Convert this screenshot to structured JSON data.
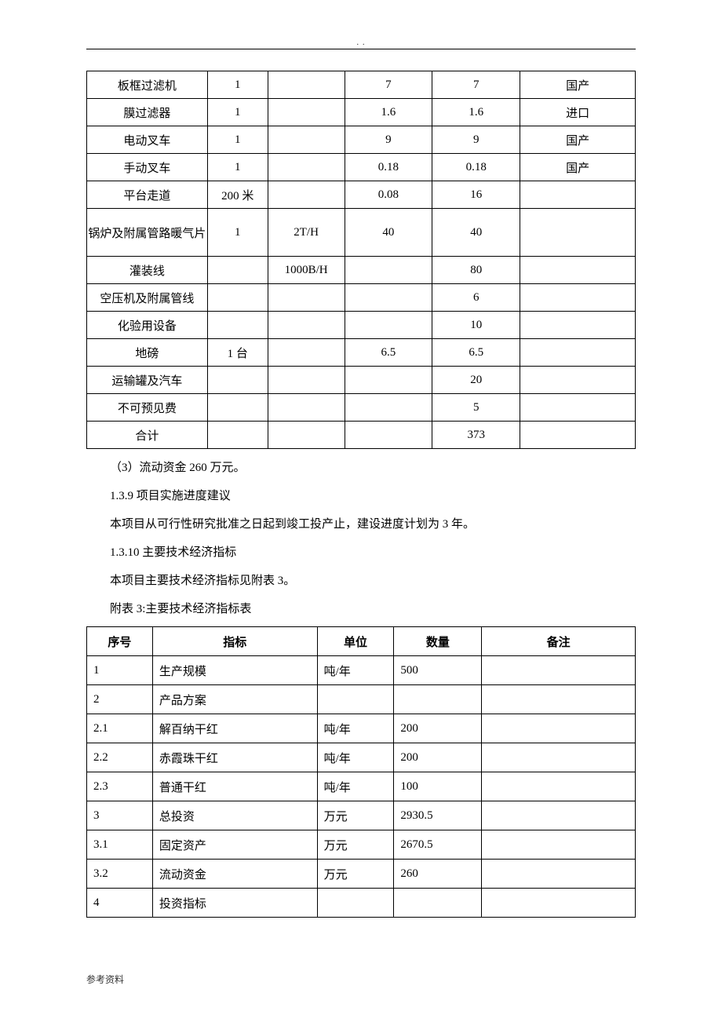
{
  "header_dots": ". .",
  "table1": {
    "col_widths": [
      "22%",
      "11%",
      "14%",
      "16%",
      "16%",
      "21%"
    ],
    "rows": [
      {
        "cells": [
          "板框过滤机",
          "1",
          "",
          "7",
          "7",
          "国产"
        ]
      },
      {
        "cells": [
          "膜过滤器",
          "1",
          "",
          "1.6",
          "1.6",
          "进口"
        ]
      },
      {
        "cells": [
          "电动叉车",
          "1",
          "",
          "9",
          "9",
          "国产"
        ]
      },
      {
        "cells": [
          "手动叉车",
          "1",
          "",
          "0.18",
          "0.18",
          "国产"
        ]
      },
      {
        "cells": [
          "平台走道",
          "200 米",
          "",
          "0.08",
          "16",
          ""
        ]
      },
      {
        "cells": [
          "锅炉及附属管路暖气片",
          "1",
          "2T/H",
          "40",
          "40",
          ""
        ],
        "tall": true
      },
      {
        "cells": [
          "灌装线",
          "",
          "1000B/H",
          "",
          "80",
          ""
        ]
      },
      {
        "cells": [
          "空压机及附属管线",
          "",
          "",
          "",
          "6",
          ""
        ]
      },
      {
        "cells": [
          "化验用设备",
          "",
          "",
          "",
          "10",
          ""
        ]
      },
      {
        "cells": [
          "地磅",
          "1 台",
          "",
          "6.5",
          "6.5",
          ""
        ]
      },
      {
        "cells": [
          "运输罐及汽车",
          "",
          "",
          "",
          "20",
          ""
        ]
      },
      {
        "cells": [
          "不可预见费",
          "",
          "",
          "",
          "5",
          ""
        ]
      },
      {
        "cells": [
          "合计",
          "",
          "",
          "",
          "373",
          ""
        ]
      }
    ]
  },
  "paragraphs": [
    "（3）流动资金 260 万元。",
    "1.3.9 项目实施进度建议",
    "本项目从可行性研究批准之日起到竣工投产止，建设进度计划为 3 年。",
    "1.3.10 主要技术经济指标",
    "本项目主要技术经济指标见附表 3。",
    "附表 3:主要技术经济指标表"
  ],
  "table2": {
    "col_widths": [
      "12%",
      "30%",
      "14%",
      "16%",
      "28%"
    ],
    "headers": [
      "序号",
      "指标",
      "单位",
      "数量",
      "备注"
    ],
    "rows": [
      [
        "1",
        "生产规模",
        "吨/年",
        "500",
        ""
      ],
      [
        "2",
        "产品方案",
        "",
        "",
        ""
      ],
      [
        "2.1",
        "解百纳干红",
        "吨/年",
        "200",
        ""
      ],
      [
        "2.2",
        "赤霞珠干红",
        "吨/年",
        "200",
        ""
      ],
      [
        "2.3",
        "普通干红",
        "吨/年",
        "100",
        ""
      ],
      [
        "3",
        "总投资",
        "万元",
        "2930.5",
        ""
      ],
      [
        "3.1",
        "固定资产",
        "万元",
        "2670.5",
        ""
      ],
      [
        "3.2",
        "流动资金",
        "万元",
        "260",
        ""
      ],
      [
        "4",
        "投资指标",
        "",
        "",
        ""
      ]
    ]
  },
  "footer": "参考资料"
}
